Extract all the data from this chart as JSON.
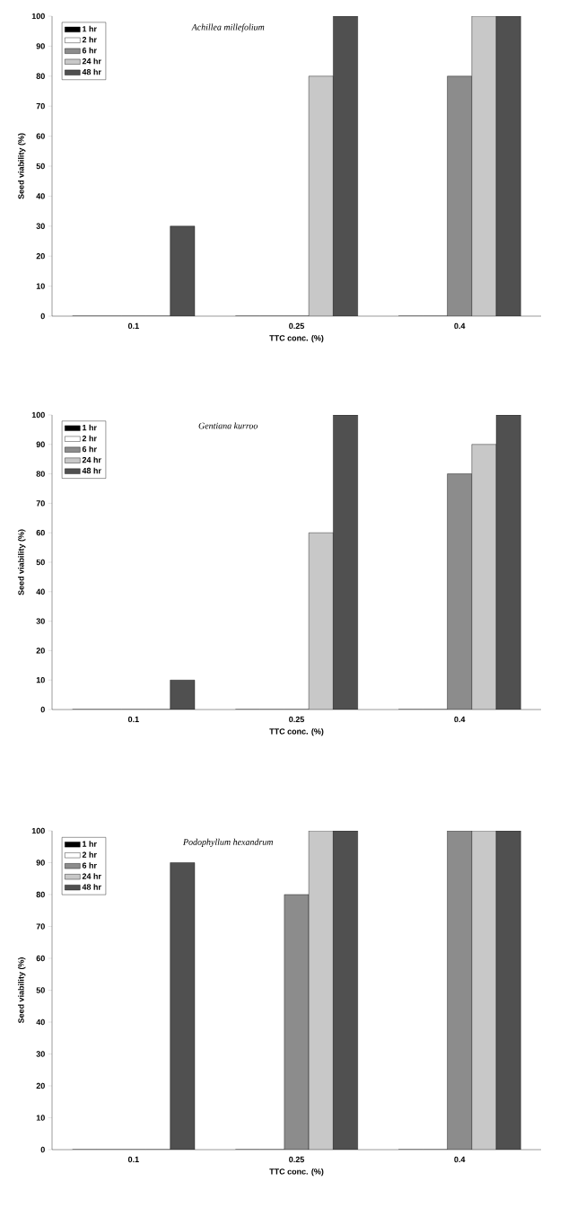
{
  "chart_data": [
    {
      "type": "bar",
      "title": "Achillea millefolium",
      "xlabel": "TTC conc. (%)",
      "ylabel": "Seed viability (%)",
      "categories": [
        "0.1",
        "0.25",
        "0.4"
      ],
      "ylim": [
        0,
        100
      ],
      "yticks": [
        0,
        10,
        20,
        30,
        40,
        50,
        60,
        70,
        80,
        90,
        100
      ],
      "legend": "top left",
      "series": [
        {
          "name": "1 hr",
          "color": "#000000",
          "values": [
            0,
            0,
            0
          ]
        },
        {
          "name": "2 hr",
          "color": "#ffffff",
          "values": [
            0,
            0,
            0
          ]
        },
        {
          "name": "6 hr",
          "color": "#8c8c8c",
          "values": [
            0,
            0,
            80
          ]
        },
        {
          "name": "24 hr",
          "color": "#c8c8c8",
          "values": [
            0,
            80,
            100
          ]
        },
        {
          "name": "48 hr",
          "color": "#505050",
          "values": [
            30,
            100,
            100
          ]
        }
      ]
    },
    {
      "type": "bar",
      "title": "Gentiana kurroo",
      "xlabel": "TTC conc. (%)",
      "ylabel": "Seed viability (%)",
      "categories": [
        "0.1",
        "0.25",
        "0.4"
      ],
      "ylim": [
        0,
        100
      ],
      "yticks": [
        0,
        10,
        20,
        30,
        40,
        50,
        60,
        70,
        80,
        90,
        100
      ],
      "legend": "top left",
      "series": [
        {
          "name": "1 hr",
          "color": "#000000",
          "values": [
            0,
            0,
            0
          ]
        },
        {
          "name": "2 hr",
          "color": "#ffffff",
          "values": [
            0,
            0,
            0
          ]
        },
        {
          "name": "6 hr",
          "color": "#8c8c8c",
          "values": [
            0,
            0,
            80
          ]
        },
        {
          "name": "24 hr",
          "color": "#c8c8c8",
          "values": [
            0,
            60,
            90
          ]
        },
        {
          "name": "48 hr",
          "color": "#505050",
          "values": [
            10,
            100,
            100
          ]
        }
      ]
    },
    {
      "type": "bar",
      "title": "Podophyllum hexandrum",
      "xlabel": "TTC conc. (%)",
      "ylabel": "Seed viability (%)",
      "categories": [
        "0.1",
        "0.25",
        "0.4"
      ],
      "ylim": [
        0,
        100
      ],
      "yticks": [
        0,
        10,
        20,
        30,
        40,
        50,
        60,
        70,
        80,
        90,
        100
      ],
      "legend": "top left",
      "series": [
        {
          "name": "1 hr",
          "color": "#000000",
          "values": [
            0,
            0,
            0
          ]
        },
        {
          "name": "2 hr",
          "color": "#ffffff",
          "values": [
            0,
            0,
            0
          ]
        },
        {
          "name": "6 hr",
          "color": "#8c8c8c",
          "values": [
            0,
            80,
            100
          ]
        },
        {
          "name": "24 hr",
          "color": "#c8c8c8",
          "values": [
            0,
            100,
            100
          ]
        },
        {
          "name": "48 hr",
          "color": "#505050",
          "values": [
            90,
            100,
            100
          ]
        }
      ]
    }
  ]
}
